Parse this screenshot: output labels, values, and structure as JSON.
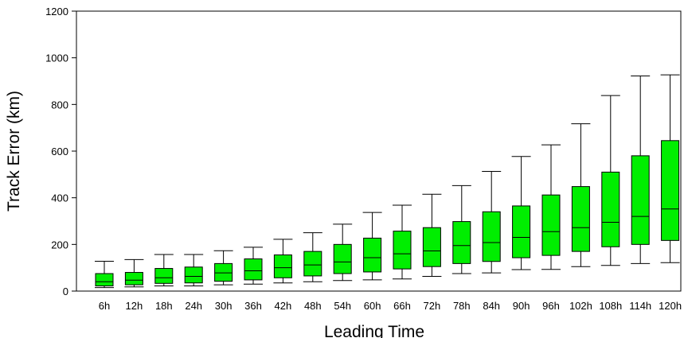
{
  "chart_data": {
    "type": "box",
    "title": "",
    "xlabel": "Leading Time",
    "ylabel": "Track Error (km)",
    "ylim": [
      0,
      1200
    ],
    "yticks": [
      0,
      200,
      400,
      600,
      800,
      1000,
      1200
    ],
    "grid": false,
    "legend": "none",
    "box_color": "#00ee00",
    "categories": [
      "6h",
      "12h",
      "18h",
      "24h",
      "30h",
      "36h",
      "42h",
      "48h",
      "54h",
      "60h",
      "66h",
      "72h",
      "78h",
      "84h",
      "90h",
      "96h",
      "102h",
      "108h",
      "114h",
      "120h"
    ],
    "boxes": [
      {
        "whisker_low": 15,
        "q1": 22,
        "median": 40,
        "q3": 75,
        "whisker_high": 128
      },
      {
        "whisker_low": 18,
        "q1": 27,
        "median": 47,
        "q3": 80,
        "whisker_high": 135
      },
      {
        "whisker_low": 22,
        "q1": 33,
        "median": 57,
        "q3": 97,
        "whisker_high": 157
      },
      {
        "whisker_low": 22,
        "q1": 35,
        "median": 63,
        "q3": 103,
        "whisker_high": 157
      },
      {
        "whisker_low": 27,
        "q1": 42,
        "median": 78,
        "q3": 118,
        "whisker_high": 173
      },
      {
        "whisker_low": 30,
        "q1": 48,
        "median": 87,
        "q3": 138,
        "whisker_high": 188
      },
      {
        "whisker_low": 35,
        "q1": 57,
        "median": 100,
        "q3": 155,
        "whisker_high": 222
      },
      {
        "whisker_low": 40,
        "q1": 65,
        "median": 112,
        "q3": 170,
        "whisker_high": 250
      },
      {
        "whisker_low": 45,
        "q1": 75,
        "median": 125,
        "q3": 200,
        "whisker_high": 287
      },
      {
        "whisker_low": 48,
        "q1": 82,
        "median": 143,
        "q3": 227,
        "whisker_high": 337
      },
      {
        "whisker_low": 52,
        "q1": 95,
        "median": 160,
        "q3": 257,
        "whisker_high": 368
      },
      {
        "whisker_low": 63,
        "q1": 105,
        "median": 172,
        "q3": 272,
        "whisker_high": 415
      },
      {
        "whisker_low": 75,
        "q1": 118,
        "median": 195,
        "q3": 298,
        "whisker_high": 452
      },
      {
        "whisker_low": 78,
        "q1": 127,
        "median": 208,
        "q3": 340,
        "whisker_high": 513
      },
      {
        "whisker_low": 92,
        "q1": 143,
        "median": 230,
        "q3": 365,
        "whisker_high": 577
      },
      {
        "whisker_low": 93,
        "q1": 153,
        "median": 255,
        "q3": 412,
        "whisker_high": 627
      },
      {
        "whisker_low": 105,
        "q1": 170,
        "median": 272,
        "q3": 448,
        "whisker_high": 717
      },
      {
        "whisker_low": 110,
        "q1": 190,
        "median": 295,
        "q3": 510,
        "whisker_high": 838
      },
      {
        "whisker_low": 118,
        "q1": 200,
        "median": 320,
        "q3": 580,
        "whisker_high": 922
      },
      {
        "whisker_low": 122,
        "q1": 217,
        "median": 352,
        "q3": 645,
        "whisker_high": 927
      }
    ]
  }
}
